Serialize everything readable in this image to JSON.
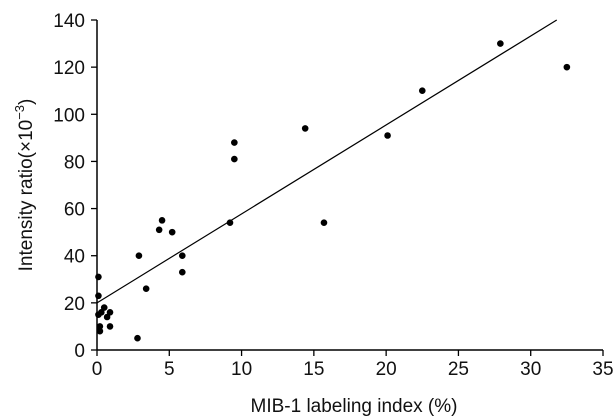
{
  "chart_data": {
    "type": "scatter",
    "xlabel": "MIB-1 labeling index (%)",
    "ylabel_main": "Intensity ratio(",
    "ylabel_mult": "×10",
    "ylabel_exp": "−3",
    "ylabel_close": ")",
    "xlim": [
      0,
      35
    ],
    "ylim": [
      0,
      140
    ],
    "x_ticks": [
      0,
      5,
      10,
      15,
      20,
      25,
      30,
      35
    ],
    "y_ticks": [
      0,
      20,
      40,
      60,
      80,
      100,
      120,
      140
    ],
    "points": [
      {
        "x": 0.1,
        "y": 31
      },
      {
        "x": 0.1,
        "y": 23
      },
      {
        "x": 0.1,
        "y": 15
      },
      {
        "x": 0.2,
        "y": 10
      },
      {
        "x": 0.2,
        "y": 8
      },
      {
        "x": 0.3,
        "y": 16
      },
      {
        "x": 0.5,
        "y": 18
      },
      {
        "x": 0.7,
        "y": 14
      },
      {
        "x": 0.9,
        "y": 16
      },
      {
        "x": 0.9,
        "y": 10
      },
      {
        "x": 2.9,
        "y": 40
      },
      {
        "x": 2.8,
        "y": 5
      },
      {
        "x": 3.4,
        "y": 26
      },
      {
        "x": 4.3,
        "y": 51
      },
      {
        "x": 4.5,
        "y": 55
      },
      {
        "x": 5.2,
        "y": 50
      },
      {
        "x": 5.9,
        "y": 40
      },
      {
        "x": 5.9,
        "y": 33
      },
      {
        "x": 9.2,
        "y": 54
      },
      {
        "x": 9.5,
        "y": 88
      },
      {
        "x": 9.5,
        "y": 81
      },
      {
        "x": 14.4,
        "y": 94
      },
      {
        "x": 15.7,
        "y": 54
      },
      {
        "x": 20.1,
        "y": 91
      },
      {
        "x": 22.5,
        "y": 110
      },
      {
        "x": 27.9,
        "y": 130
      },
      {
        "x": 32.5,
        "y": 120
      }
    ],
    "regression_line": {
      "x1": 0,
      "y1": 20,
      "x2": 31.8,
      "y2": 140
    },
    "grid": false,
    "legend": "none"
  }
}
